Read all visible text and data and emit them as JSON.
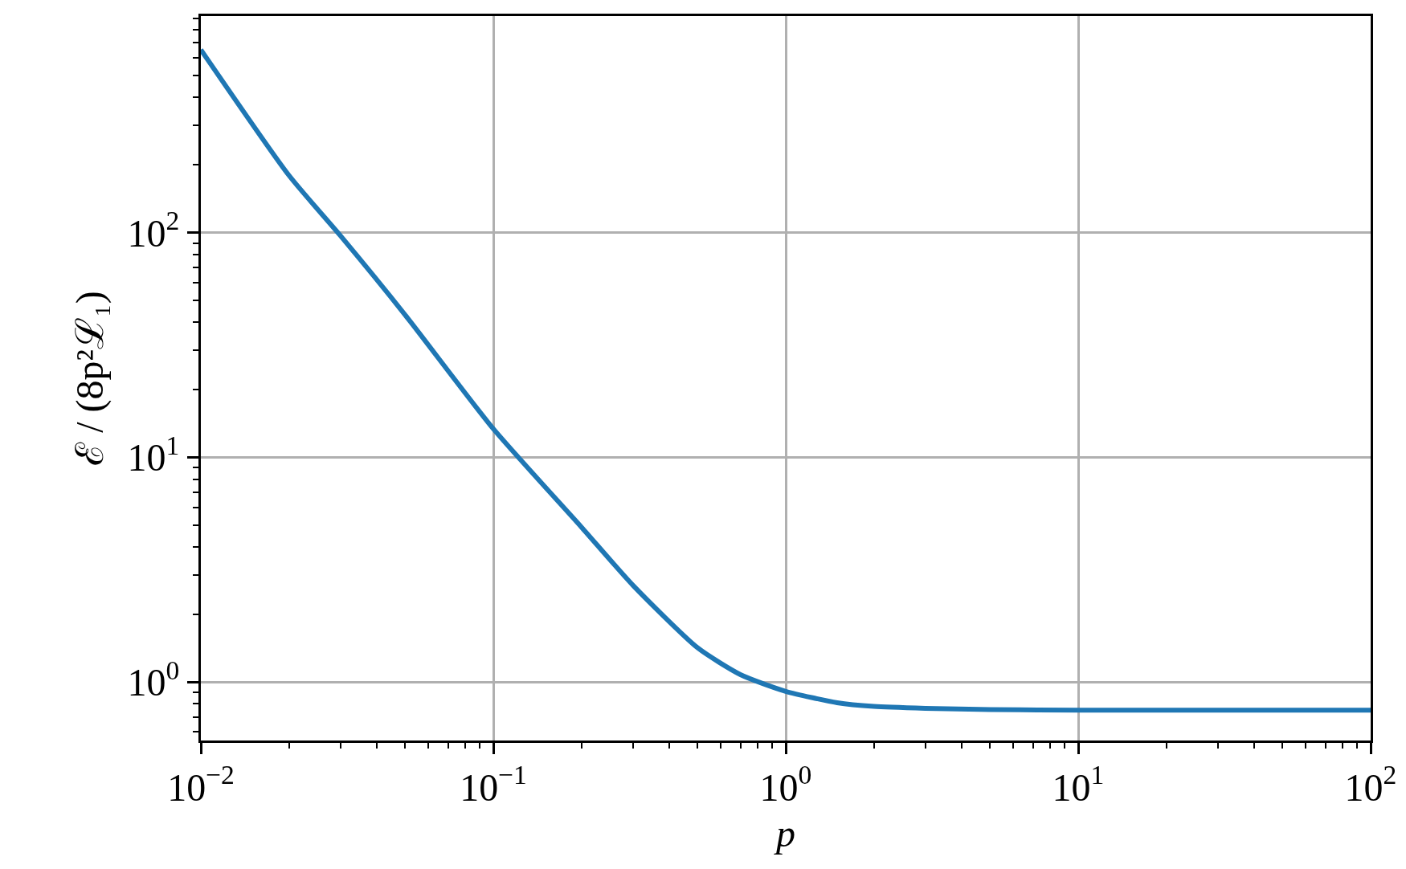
{
  "chart_data": {
    "type": "line",
    "xlabel": "p",
    "ylabel": "ℰ / (8p²ℒ₁)",
    "log": "xy",
    "grid": true,
    "xlim": [
      0.01,
      100
    ],
    "ylim": [
      0.55,
      920
    ],
    "xticks": [
      {
        "value": 0.01,
        "label": "10$^{−2}$"
      },
      {
        "value": 0.1,
        "label": "10$^{−1}$"
      },
      {
        "value": 1,
        "label": "10$^{0}$"
      },
      {
        "value": 10,
        "label": "10$^{1}$"
      },
      {
        "value": 100,
        "label": "10$^{2}$"
      }
    ],
    "yticks": [
      {
        "value": 1,
        "label": "10$^{0}$"
      },
      {
        "value": 10,
        "label": "10$^{1}$"
      },
      {
        "value": 100,
        "label": "10$^{2}$"
      }
    ],
    "x": [
      0.01,
      0.02,
      0.03,
      0.05,
      0.1,
      0.2,
      0.3,
      0.5,
      0.7,
      1,
      1.5,
      2,
      3,
      5,
      10,
      100
    ],
    "series": [
      {
        "color": "#1f77b4",
        "values": [
          652,
          180,
          97,
          43,
          13.4,
          4.9,
          2.7,
          1.42,
          1.08,
          0.91,
          0.81,
          0.78,
          0.765,
          0.755,
          0.75,
          0.75
        ]
      }
    ]
  }
}
